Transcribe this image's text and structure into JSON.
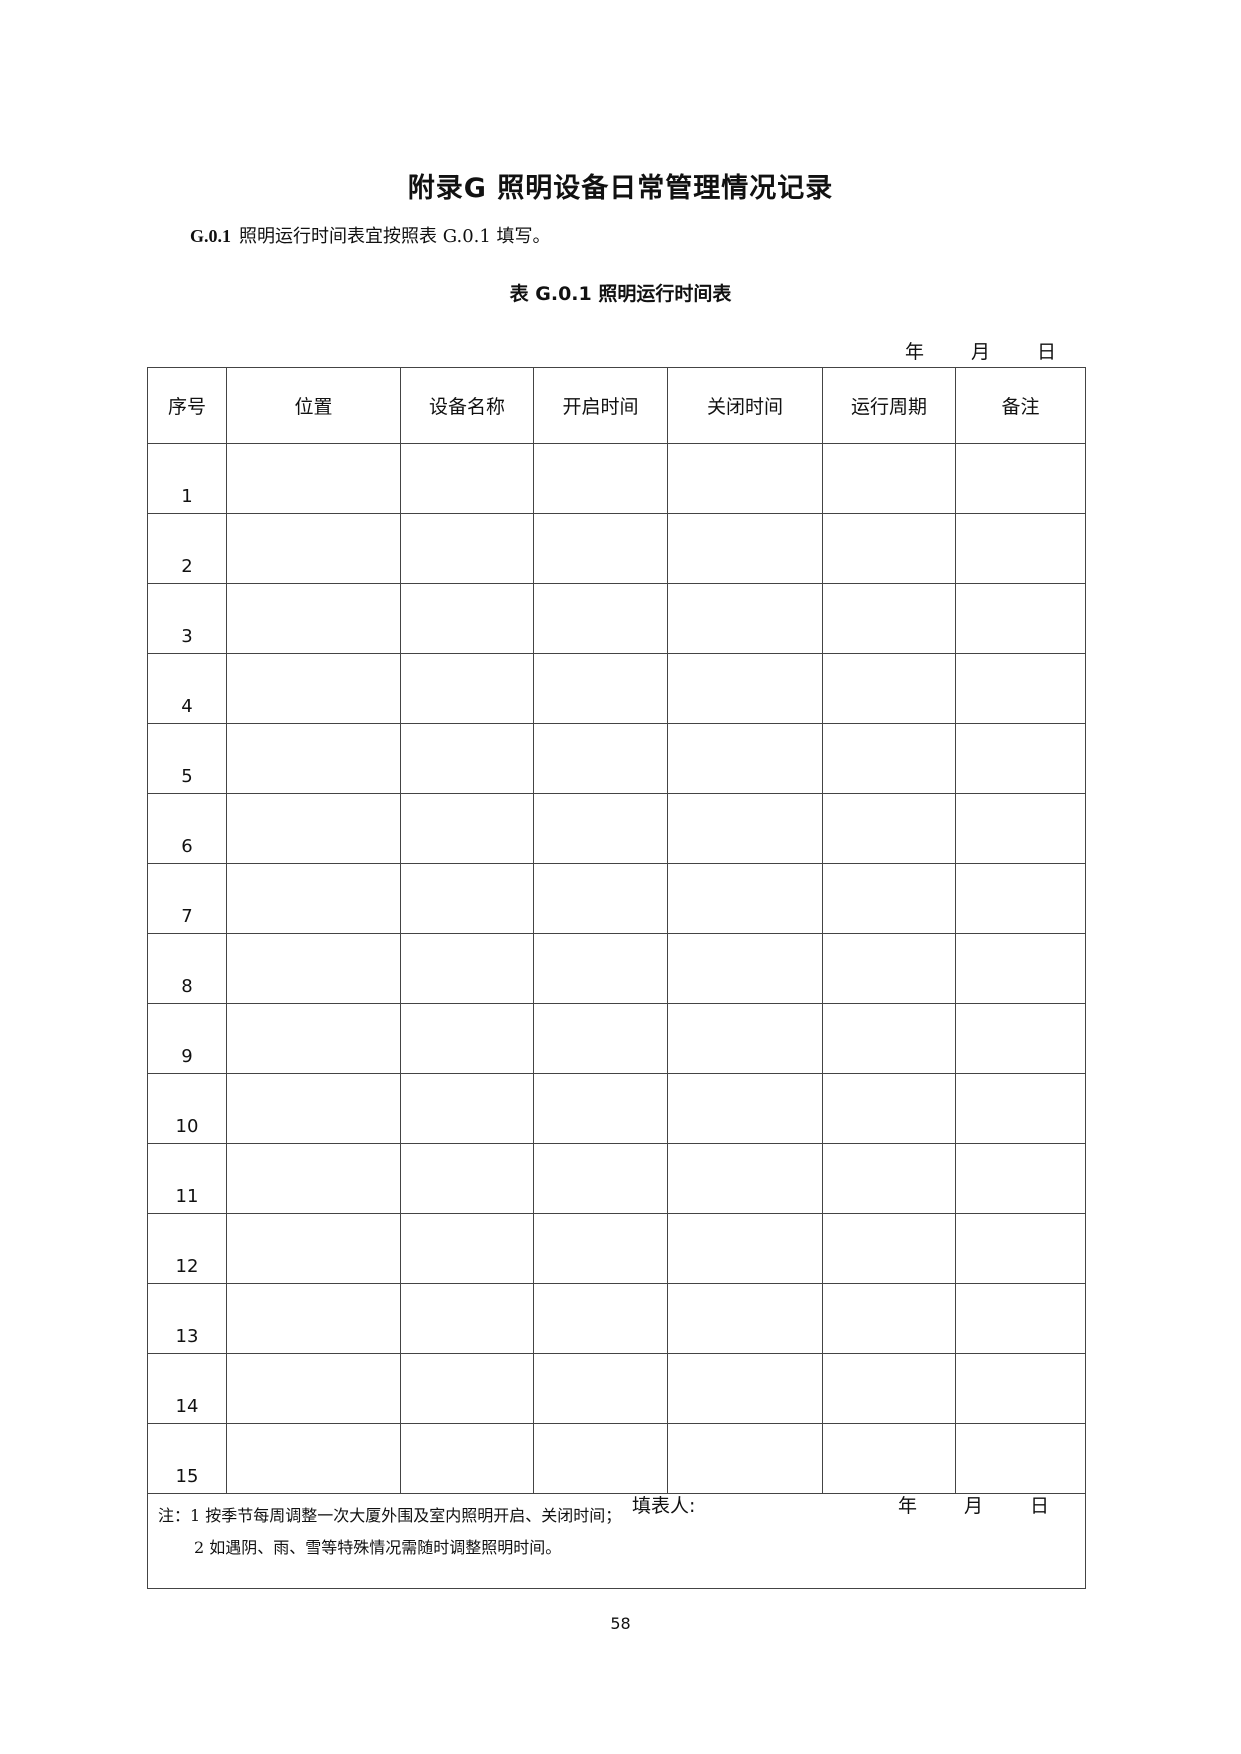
{
  "title": "附录G 照明设备日常管理情况记录",
  "clause": {
    "number": "G.0.1",
    "text": "照明运行时间表宜按照表 G.0.1 填写。"
  },
  "caption": "表 G.0.1  照明运行时间表",
  "date_labels": {
    "year": "年",
    "month": "月",
    "day": "日"
  },
  "table": {
    "headers": [
      "序号",
      "位置",
      "设备名称",
      "开启时间",
      "关闭时间",
      "运行周期",
      "备注"
    ],
    "rows": [
      "1",
      "2",
      "3",
      "4",
      "5",
      "6",
      "7",
      "8",
      "9",
      "10",
      "11",
      "12",
      "13",
      "14",
      "15"
    ]
  },
  "notes": [
    "注：1 按季节每周调整一次大厦外围及室内照明开启、关闭时间；",
    "2 如遇阴、雨、雪等特殊情况需随时调整照明时间。"
  ],
  "footer": {
    "filler_label": "填表人:",
    "year": "年",
    "month": "月",
    "day": "日"
  },
  "page_number": "58"
}
